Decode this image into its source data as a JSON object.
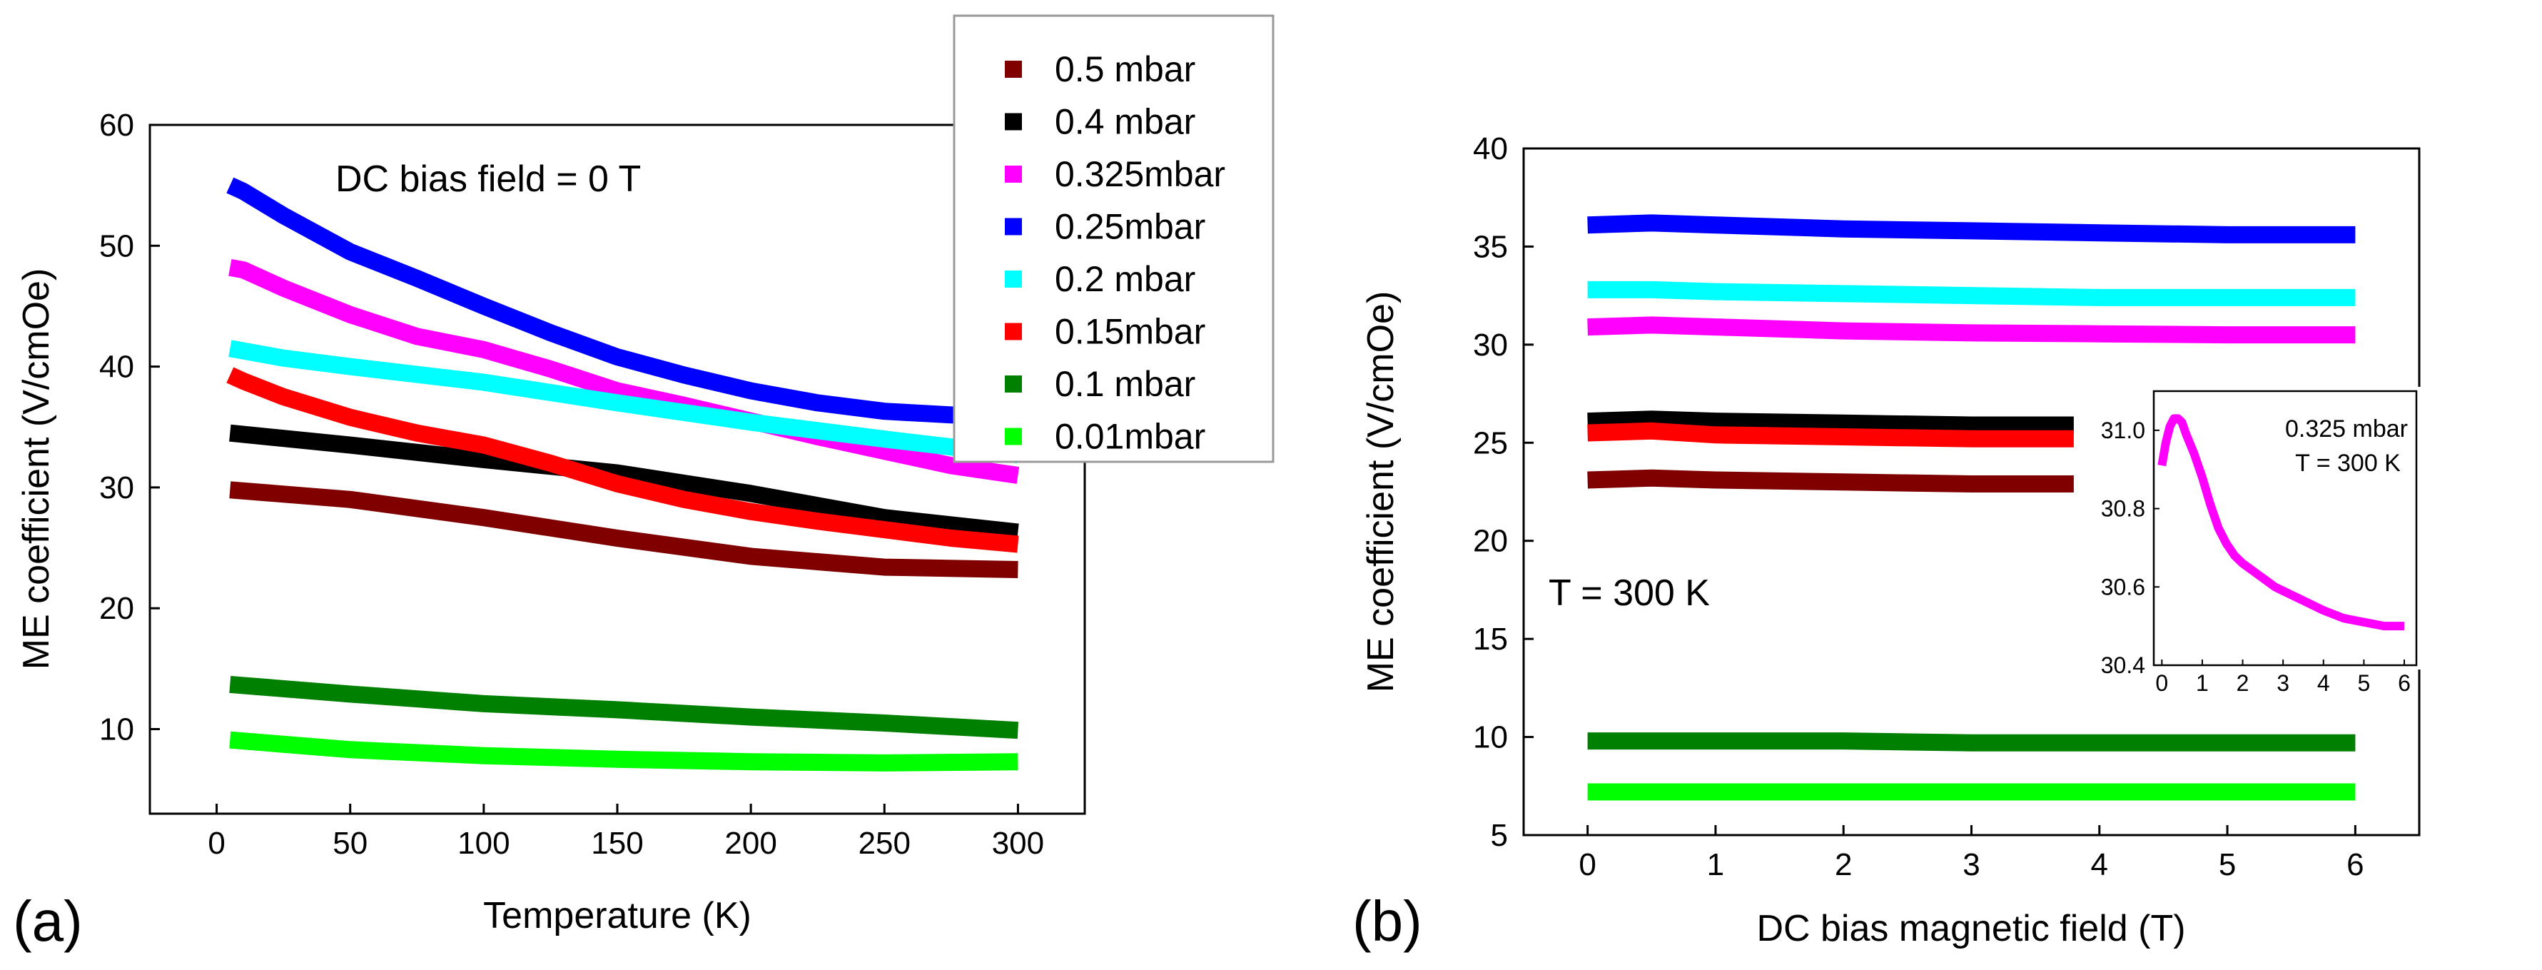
{
  "panels": {
    "a": "(a)",
    "b": "(b)"
  },
  "legend": {
    "entries": [
      {
        "label": "0.5 mbar",
        "color": "#800000"
      },
      {
        "label": "0.4 mbar",
        "color": "#000000"
      },
      {
        "label": "0.325mbar",
        "color": "#ff00ff"
      },
      {
        "label": "0.25mbar",
        "color": "#0000ff"
      },
      {
        "label": "0.2 mbar",
        "color": "#00ffff"
      },
      {
        "label": "0.15mbar",
        "color": "#ff0000"
      },
      {
        "label": "0.1 mbar",
        "color": "#008000"
      },
      {
        "label": "0.01mbar",
        "color": "#00ff00"
      }
    ]
  },
  "chart_data": [
    {
      "id": "a",
      "type": "line",
      "xlabel": "Temperature (K)",
      "ylabel": "ME coefficient (V/cmOe)",
      "xlim": [
        -25,
        325
      ],
      "ylim": [
        3,
        60
      ],
      "xticks": [
        0,
        50,
        100,
        150,
        200,
        250,
        300
      ],
      "yticks": [
        10,
        20,
        30,
        40,
        50,
        60
      ],
      "annotation": "DC bias field = 0 T",
      "series": [
        {
          "name": "0.5 mbar",
          "color": "#800000",
          "x": [
            5,
            50,
            100,
            150,
            200,
            250,
            300
          ],
          "y": [
            29.8,
            29.0,
            27.5,
            25.8,
            24.3,
            23.4,
            23.2
          ]
        },
        {
          "name": "0.4 mbar",
          "color": "#000000",
          "x": [
            5,
            50,
            100,
            150,
            200,
            250,
            300
          ],
          "y": [
            34.5,
            33.5,
            32.3,
            31.2,
            29.5,
            27.5,
            26.3
          ]
        },
        {
          "name": "0.325mbar",
          "color": "#ff00ff",
          "x": [
            5,
            10,
            25,
            50,
            75,
            100,
            125,
            150,
            175,
            200,
            225,
            250,
            275,
            300
          ],
          "y": [
            48.2,
            48.0,
            46.5,
            44.3,
            42.5,
            41.4,
            39.8,
            38.0,
            36.8,
            35.5,
            34.2,
            33.0,
            31.8,
            31.0
          ]
        },
        {
          "name": "0.25mbar",
          "color": "#0000ff",
          "x": [
            5,
            10,
            25,
            50,
            75,
            100,
            125,
            150,
            175,
            200,
            225,
            250,
            275,
            300
          ],
          "y": [
            55.0,
            54.5,
            52.5,
            49.5,
            47.3,
            45.0,
            42.8,
            40.8,
            39.3,
            38.0,
            37.0,
            36.3,
            36.0,
            35.8
          ]
        },
        {
          "name": "0.2 mbar",
          "color": "#00ffff",
          "x": [
            5,
            25,
            50,
            100,
            150,
            200,
            250,
            300
          ],
          "y": [
            41.5,
            40.7,
            40.0,
            38.7,
            37.0,
            35.4,
            34.0,
            32.7
          ]
        },
        {
          "name": "0.15mbar",
          "color": "#ff0000",
          "x": [
            5,
            10,
            25,
            50,
            75,
            100,
            125,
            150,
            175,
            200,
            225,
            250,
            275,
            300
          ],
          "y": [
            39.3,
            38.8,
            37.5,
            35.8,
            34.5,
            33.5,
            32.0,
            30.3,
            29.0,
            28.0,
            27.2,
            26.5,
            25.8,
            25.3
          ]
        },
        {
          "name": "0.1 mbar",
          "color": "#008000",
          "x": [
            5,
            50,
            100,
            150,
            200,
            250,
            300
          ],
          "y": [
            13.7,
            12.9,
            12.1,
            11.6,
            11.0,
            10.5,
            9.9
          ]
        },
        {
          "name": "0.01mbar",
          "color": "#00ff00",
          "x": [
            5,
            50,
            100,
            150,
            200,
            250,
            300
          ],
          "y": [
            9.1,
            8.3,
            7.8,
            7.5,
            7.3,
            7.2,
            7.3
          ]
        }
      ]
    },
    {
      "id": "b",
      "type": "line",
      "xlabel": "DC bias magnetic field (T)",
      "ylabel": "ME coefficient (V/cmOe)",
      "xlim": [
        -0.5,
        6.5
      ],
      "ylim": [
        5,
        40
      ],
      "xticks": [
        0,
        1,
        2,
        3,
        4,
        5,
        6
      ],
      "yticks": [
        5,
        10,
        15,
        20,
        25,
        30,
        35,
        40
      ],
      "annotation": "T = 300 K",
      "series": [
        {
          "name": "0.5 mbar",
          "color": "#800000",
          "x": [
            0,
            0.5,
            1,
            2,
            3,
            3.8
          ],
          "y": [
            23.1,
            23.2,
            23.1,
            23.0,
            22.9,
            22.9
          ]
        },
        {
          "name": "0.4 mbar",
          "color": "#000000",
          "x": [
            0,
            0.5,
            1,
            2,
            3,
            3.8
          ],
          "y": [
            26.1,
            26.2,
            26.1,
            26.0,
            25.9,
            25.9
          ]
        },
        {
          "name": "0.325mbar",
          "color": "#ff00ff",
          "x": [
            0,
            0.5,
            1,
            2,
            3,
            4,
            5,
            6
          ],
          "y": [
            30.9,
            31.0,
            30.9,
            30.7,
            30.6,
            30.55,
            30.5,
            30.5
          ]
        },
        {
          "name": "0.25mbar",
          "color": "#0000ff",
          "x": [
            0,
            0.5,
            1,
            2,
            3,
            4,
            5,
            6
          ],
          "y": [
            36.1,
            36.2,
            36.1,
            35.9,
            35.8,
            35.7,
            35.6,
            35.6
          ]
        },
        {
          "name": "0.2 mbar",
          "color": "#00ffff",
          "x": [
            0,
            0.5,
            1,
            2,
            3,
            4,
            5,
            6
          ],
          "y": [
            32.8,
            32.8,
            32.7,
            32.6,
            32.5,
            32.4,
            32.4,
            32.4
          ]
        },
        {
          "name": "0.15mbar",
          "color": "#ff0000",
          "x": [
            0,
            0.5,
            1,
            2,
            3,
            3.8
          ],
          "y": [
            25.5,
            25.6,
            25.4,
            25.3,
            25.2,
            25.2
          ]
        },
        {
          "name": "0.1 mbar",
          "color": "#008000",
          "x": [
            0,
            1,
            2,
            3,
            4,
            5,
            6
          ],
          "y": [
            9.8,
            9.8,
            9.8,
            9.7,
            9.7,
            9.7,
            9.7
          ]
        },
        {
          "name": "0.01mbar",
          "color": "#00ff00",
          "x": [
            0,
            1,
            2,
            3,
            4,
            5,
            6
          ],
          "y": [
            7.2,
            7.2,
            7.2,
            7.2,
            7.2,
            7.2,
            7.2
          ]
        }
      ]
    },
    {
      "id": "b-inset",
      "type": "line",
      "xlim": [
        -0.2,
        6.3
      ],
      "ylim": [
        30.4,
        31.1
      ],
      "xticks": [
        0,
        1,
        2,
        3,
        4,
        5,
        6
      ],
      "yticks": [
        30.4,
        30.6,
        30.8,
        31.0
      ],
      "annotations": [
        "0.325 mbar",
        "T = 300 K"
      ],
      "series": [
        {
          "name": "0.325 mbar",
          "color": "#ff00ff",
          "x": [
            0,
            0.1,
            0.2,
            0.3,
            0.4,
            0.5,
            0.6,
            0.8,
            1.0,
            1.2,
            1.4,
            1.6,
            1.8,
            2.0,
            2.4,
            2.8,
            3.2,
            3.6,
            4.0,
            4.5,
            5.0,
            5.5,
            6.0
          ],
          "y": [
            30.91,
            30.97,
            31.01,
            31.03,
            31.03,
            31.02,
            30.99,
            30.94,
            30.88,
            30.81,
            30.75,
            30.71,
            30.68,
            30.66,
            30.63,
            30.6,
            30.58,
            30.56,
            30.54,
            30.52,
            30.51,
            30.5,
            30.5
          ]
        }
      ]
    }
  ]
}
